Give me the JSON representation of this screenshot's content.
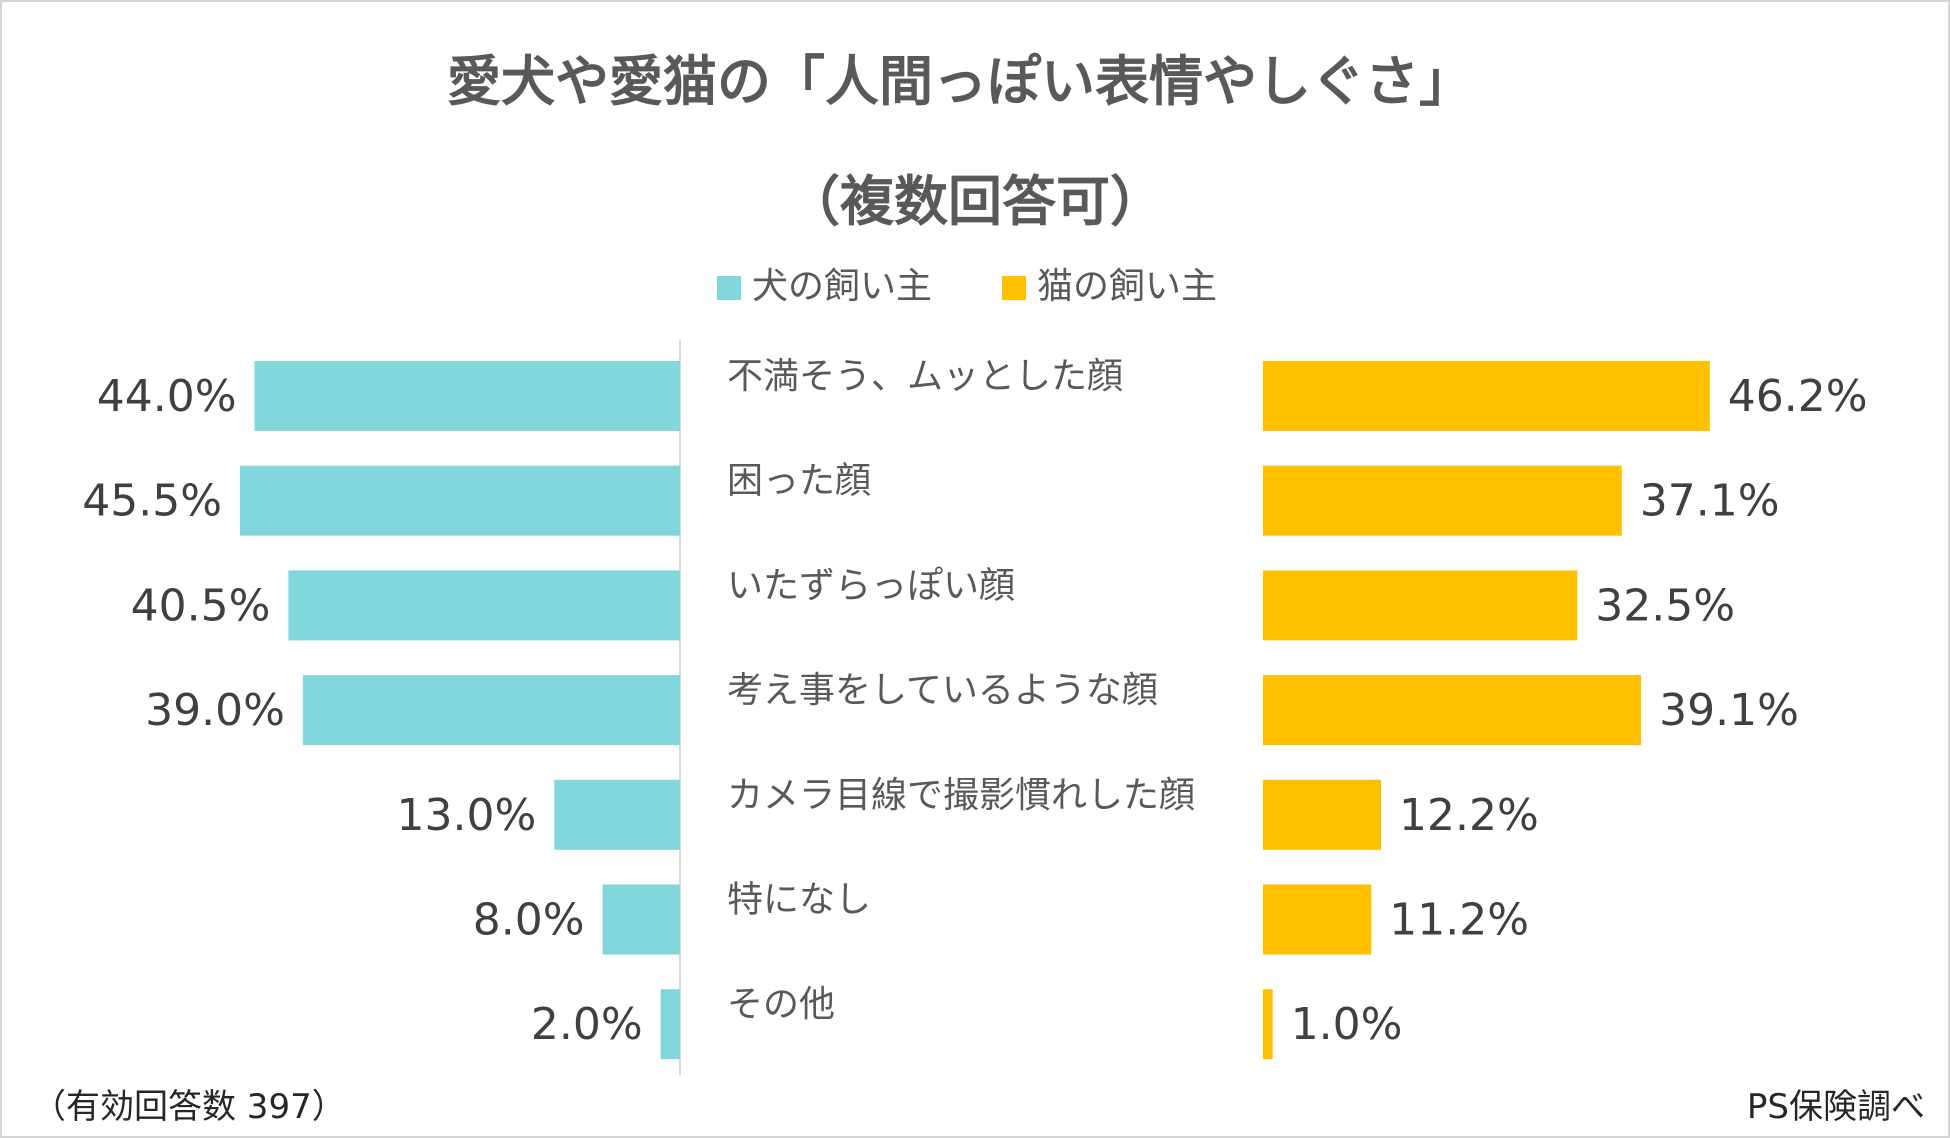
{
  "colors": {
    "dog": "#82D7DC",
    "cat": "#FFC000",
    "text": "#595959",
    "value_text": "#404040"
  },
  "chart_data": {
    "type": "bar",
    "orientation": "horizontal-butterfly",
    "title": "愛犬や愛猫の「人間っぽい表情やしぐさ」",
    "subtitle": "（複数回答可）",
    "categories": [
      "不満そう、ムッとした顔",
      "困った顔",
      "いたずらっぽい顔",
      "考え事をしているような顔",
      "カメラ目線で撮影慣れした顔",
      "特になし",
      "その他"
    ],
    "series": [
      {
        "name": "犬の飼い主",
        "values": [
          44.0,
          45.5,
          40.5,
          39.0,
          13.0,
          8.0,
          2.0
        ],
        "labels": [
          "44.0%",
          "45.5%",
          "40.5%",
          "39.0%",
          "13.0%",
          "8.0%",
          "2.0%"
        ]
      },
      {
        "name": "猫の飼い主",
        "values": [
          46.2,
          37.1,
          32.5,
          39.1,
          12.2,
          11.2,
          1.0
        ],
        "labels": [
          "46.2%",
          "37.1%",
          "32.5%",
          "39.1%",
          "12.2%",
          "11.2%",
          "1.0%"
        ]
      }
    ],
    "unit": "%",
    "xlim": [
      0,
      50
    ],
    "legend_position": "top-center"
  },
  "footer": {
    "sample_note": "（有効回答数 397）",
    "source": "PS保険調べ"
  }
}
